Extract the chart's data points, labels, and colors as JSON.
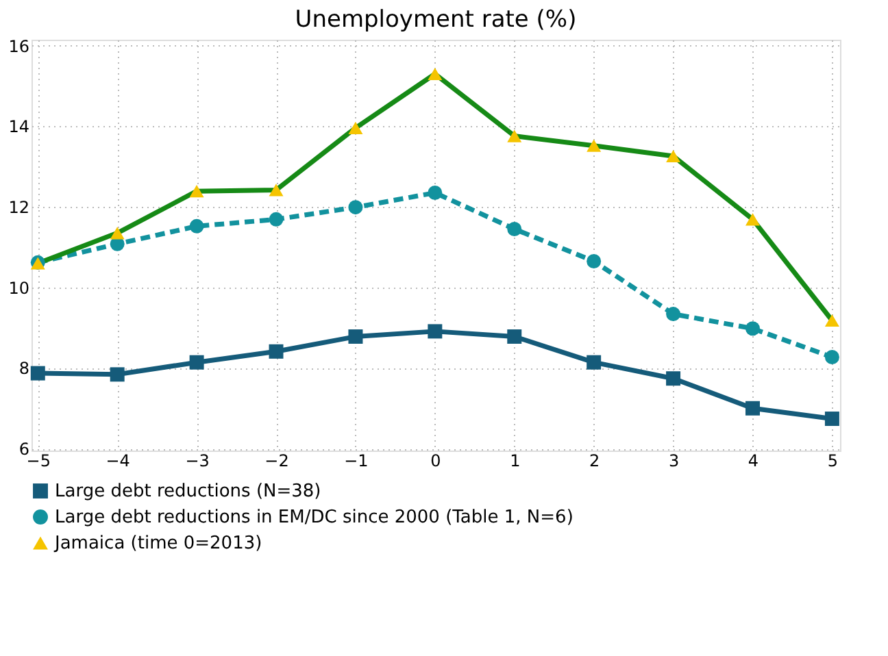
{
  "chart_data": {
    "type": "line",
    "title": "Unemployment rate (%)",
    "x": [
      -5,
      -4,
      -3,
      -2,
      -1,
      0,
      1,
      2,
      3,
      4,
      5
    ],
    "series": [
      {
        "name": "Large debt reductions (N=38)",
        "color": "#155b7a",
        "marker": "square",
        "line_style": "solid",
        "values": [
          7.87,
          7.84,
          8.14,
          8.41,
          8.78,
          8.91,
          8.78,
          8.14,
          7.74,
          7.0,
          6.74
        ]
      },
      {
        "name": "Large debt reductions in EM/DC since 2000 (Table 1, N=6)",
        "color": "#12929e",
        "marker": "circle",
        "line_style": "dashed",
        "values": [
          10.62,
          11.08,
          11.52,
          11.69,
          11.99,
          12.35,
          11.45,
          10.65,
          9.34,
          8.98,
          8.27
        ]
      },
      {
        "name": "Jamaica (time 0=2013)",
        "color": "#168a16",
        "colors": [
          "#f5c400",
          "#f5c400",
          "#f5c400",
          "#f5c400",
          "#f5c400",
          "#f5c400",
          "#f5c400",
          "#f5c400",
          "#f5c400",
          "#f5c400",
          "#f5c400"
        ],
        "marker": "triangle",
        "line_style": "solid",
        "values": [
          10.6,
          11.35,
          12.39,
          12.42,
          13.96,
          15.3,
          13.76,
          13.52,
          13.26,
          11.69,
          9.18
        ]
      }
    ],
    "xlim": [
      -5.08,
      5.1
    ],
    "xticks": [
      -5,
      -4,
      -3,
      -2,
      -1,
      0,
      1,
      2,
      3,
      4,
      5
    ],
    "ylim": [
      5.95,
      16.15
    ],
    "yticks": [
      6,
      8,
      10,
      12,
      14,
      16
    ],
    "grid": true,
    "legend": "bottom"
  }
}
